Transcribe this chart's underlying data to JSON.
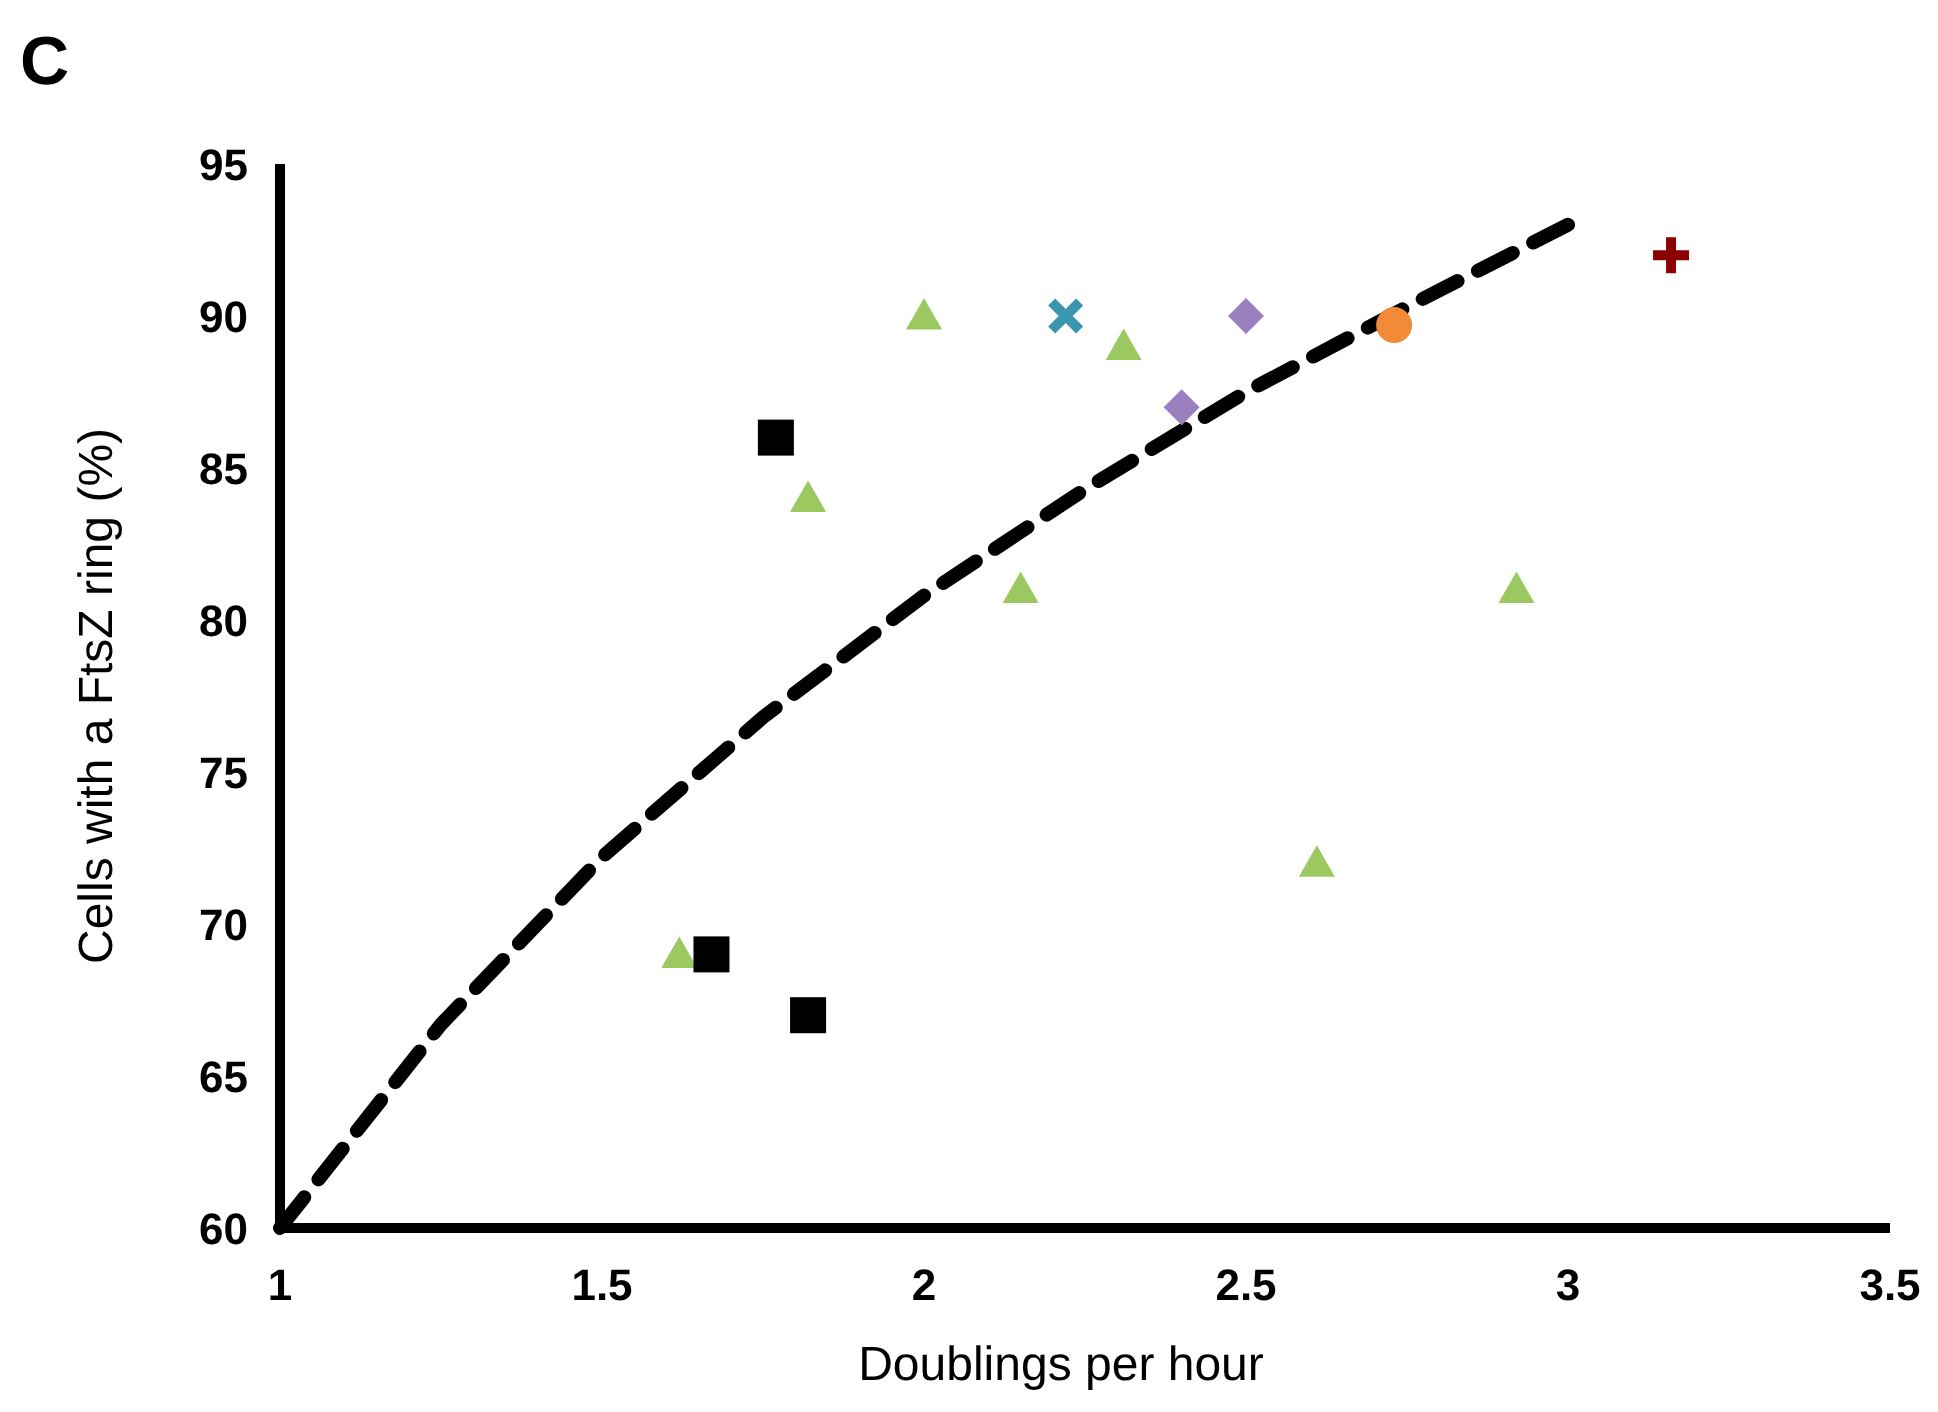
{
  "chart_data": {
    "type": "scatter",
    "xlabel": "Doublings per hour",
    "ylabel": "Cells with a FtsZ ring (%)",
    "annotations": [
      "C"
    ],
    "xlim": [
      1,
      3.5
    ],
    "xticks": [
      1,
      1.5,
      2,
      2.5,
      3,
      3.5
    ],
    "ylim": [
      60,
      95
    ],
    "yticks": [
      60,
      65,
      70,
      75,
      80,
      85,
      90,
      95
    ],
    "grid": false,
    "series": [
      {
        "type": "line",
        "color": "#000000",
        "marker": "none",
        "line_style": "dashed",
        "x": [
          1,
          1.25,
          1.5,
          1.75,
          2,
          2.25,
          2.5,
          2.75,
          3
        ],
        "values": [
          60,
          66.7,
          72.2,
          76.8,
          80.8,
          84.3,
          87.5,
          90.3,
          93
        ]
      },
      {
        "color": "#9bc85f",
        "marker": "triangle",
        "x": [
          1.62,
          1.82,
          2.0,
          2.15,
          2.31,
          2.61,
          2.92
        ],
        "values": [
          69,
          84,
          90,
          81,
          89,
          72,
          81
        ]
      },
      {
        "color": "#000000",
        "marker": "square",
        "x": [
          1.67,
          1.77,
          1.82
        ],
        "values": [
          69,
          86,
          67
        ]
      },
      {
        "color": "#3b97b0",
        "marker": "x",
        "x": [
          2.22
        ],
        "values": [
          90
        ]
      },
      {
        "color": "#9b80c0",
        "marker": "diamond",
        "x": [
          2.4,
          2.5
        ],
        "values": [
          87,
          90
        ]
      },
      {
        "color": "#f28a37",
        "marker": "circle",
        "x": [
          2.73
        ],
        "values": [
          89.7
        ]
      },
      {
        "color": "#8b0000",
        "marker": "cross",
        "x": [
          3.16
        ],
        "values": [
          92
        ]
      }
    ]
  }
}
